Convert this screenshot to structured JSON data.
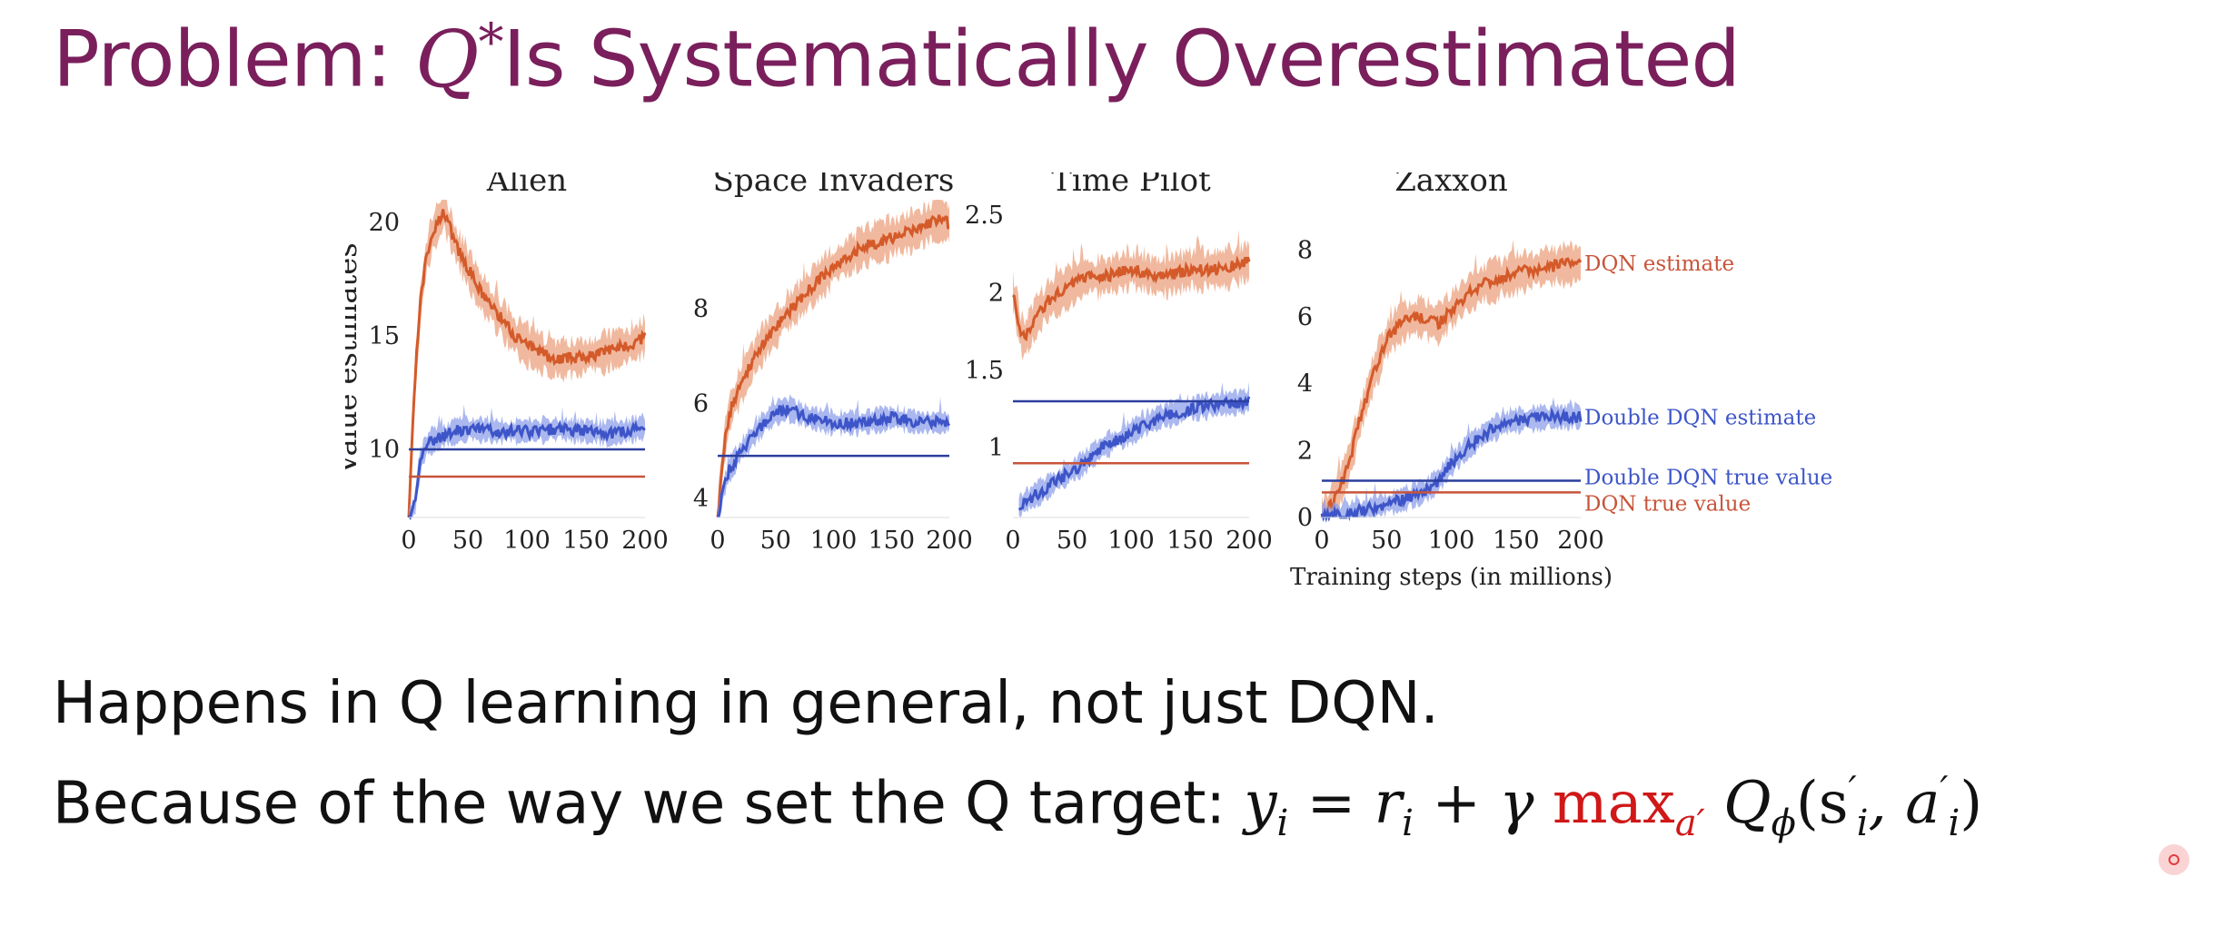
{
  "slide": {
    "title_prefix": "Problem: ",
    "title_q": "Q",
    "title_star": "*",
    "title_suffix": "Is Systematically Overestimated",
    "line1": "Happens in Q learning in general, not just DQN.",
    "line2_text": "Because of the way we set the Q target: ",
    "formula": {
      "y": "y",
      "y_sub": "i",
      "eq": " = ",
      "r": "r",
      "r_sub": "i",
      "plus": " + ",
      "gamma": "γ ",
      "max": "max",
      "max_sub": "a′",
      "q": " Q",
      "q_sub": "ϕ",
      "args_open": "(s",
      "s_sup": "′",
      "s_sub": "i",
      "comma": ", a",
      "a_sup": "′",
      "a_sub": "i",
      "args_close": ")"
    }
  },
  "colors": {
    "title": "#7a1f5c",
    "dqn": "#d45a2a",
    "dqn_band": "#eba27f",
    "double": "#3d55c8",
    "double_band": "#8fa0ea",
    "true_dqn": "#c8543a",
    "true_double": "#2b3f9e",
    "red_max": "#d01818"
  },
  "chart_data": [
    {
      "type": "line",
      "title": "Alien",
      "ylabel": "Value estimates",
      "xlabel": "",
      "xlim": [
        0,
        200
      ],
      "ylim": [
        7,
        21
      ],
      "xticks": [
        0,
        50,
        100,
        150,
        200
      ],
      "yticks": [
        10,
        15,
        20
      ],
      "series": [
        {
          "name": "DQN estimate",
          "kind": "estimate",
          "x": [
            0,
            5,
            10,
            15,
            20,
            25,
            30,
            40,
            50,
            60,
            75,
            90,
            100,
            110,
            120,
            140,
            160,
            180,
            190,
            200
          ],
          "y": [
            7,
            13,
            16.5,
            18.5,
            19.5,
            20,
            20.5,
            19,
            18,
            17,
            16,
            15,
            14.6,
            14.3,
            14,
            14,
            14.2,
            14.5,
            14.6,
            15
          ]
        },
        {
          "name": "Double DQN estimate",
          "kind": "estimate",
          "x": [
            0,
            5,
            10,
            15,
            20,
            30,
            40,
            50,
            75,
            100,
            125,
            150,
            175,
            200
          ],
          "y": [
            7,
            7.5,
            9.5,
            10.2,
            10.4,
            10.6,
            10.8,
            10.9,
            10.8,
            10.8,
            10.9,
            10.8,
            10.7,
            11
          ]
        },
        {
          "name": "Double DQN true value",
          "kind": "true",
          "x": [
            0,
            200
          ],
          "y": [
            10,
            10
          ]
        },
        {
          "name": "DQN true value",
          "kind": "true",
          "x": [
            0,
            200
          ],
          "y": [
            8.8,
            8.8
          ]
        }
      ]
    },
    {
      "type": "line",
      "title": "Space Invaders",
      "xlabel": "",
      "xlim": [
        0,
        200
      ],
      "ylim": [
        3.6,
        10.3
      ],
      "xticks": [
        0,
        50,
        100,
        150,
        200
      ],
      "yticks": [
        4,
        6,
        8
      ],
      "series": [
        {
          "name": "DQN estimate",
          "kind": "estimate",
          "x": [
            0,
            5,
            10,
            15,
            20,
            30,
            40,
            50,
            60,
            75,
            100,
            125,
            150,
            175,
            190,
            200
          ],
          "y": [
            3.6,
            5,
            5.8,
            6.1,
            6.4,
            6.9,
            7.3,
            7.6,
            7.9,
            8.3,
            8.9,
            9.3,
            9.5,
            9.7,
            9.9,
            9.8
          ]
        },
        {
          "name": "Double DQN estimate",
          "kind": "estimate",
          "x": [
            0,
            5,
            10,
            20,
            30,
            40,
            50,
            60,
            70,
            80,
            100,
            125,
            150,
            175,
            200
          ],
          "y": [
            3.6,
            4.2,
            4.6,
            5,
            5.3,
            5.6,
            5.8,
            5.9,
            5.8,
            5.7,
            5.6,
            5.6,
            5.7,
            5.6,
            5.6
          ]
        },
        {
          "name": "Double DQN true value",
          "kind": "true",
          "x": [
            0,
            200
          ],
          "y": [
            4.9,
            4.9
          ]
        }
      ]
    },
    {
      "type": "line",
      "title": "Time Pilot",
      "xlabel": "",
      "xlim": [
        0,
        200
      ],
      "ylim": [
        0.55,
        2.6
      ],
      "xticks": [
        0,
        50,
        100,
        150,
        200
      ],
      "yticks": [
        1.0,
        1.5,
        2.0,
        2.5
      ],
      "series": [
        {
          "name": "DQN estimate",
          "kind": "estimate",
          "x": [
            0,
            3,
            6,
            10,
            15,
            20,
            30,
            40,
            50,
            60,
            75,
            100,
            125,
            150,
            175,
            200
          ],
          "y": [
            2,
            1.9,
            1.75,
            1.7,
            1.78,
            1.85,
            1.95,
            2.0,
            2.05,
            2.1,
            2.1,
            2.15,
            2.1,
            2.15,
            2.15,
            2.2
          ]
        },
        {
          "name": "Double DQN estimate",
          "kind": "estimate",
          "x": [
            5,
            10,
            20,
            30,
            40,
            50,
            60,
            75,
            100,
            125,
            150,
            175,
            200
          ],
          "y": [
            0.62,
            0.65,
            0.7,
            0.75,
            0.8,
            0.85,
            0.9,
            1.0,
            1.1,
            1.2,
            1.25,
            1.28,
            1.3
          ]
        },
        {
          "name": "Double DQN true value",
          "kind": "true",
          "x": [
            0,
            200
          ],
          "y": [
            1.3,
            1.3
          ]
        },
        {
          "name": "DQN true value",
          "kind": "true",
          "x": [
            0,
            200
          ],
          "y": [
            0.9,
            0.9
          ]
        }
      ]
    },
    {
      "type": "line",
      "title": "Zaxxon",
      "xlabel": "Training steps (in millions)",
      "xlim": [
        0,
        200
      ],
      "ylim": [
        0,
        9.5
      ],
      "xticks": [
        0,
        50,
        100,
        150,
        200
      ],
      "yticks": [
        0,
        2,
        4,
        6,
        8
      ],
      "series": [
        {
          "name": "DQN estimate",
          "kind": "estimate",
          "x": [
            0,
            10,
            20,
            30,
            40,
            50,
            60,
            75,
            90,
            100,
            110,
            125,
            150,
            175,
            200
          ],
          "y": [
            0,
            0.5,
            1.5,
            3,
            4.3,
            5.3,
            5.8,
            6,
            5.8,
            6.2,
            6.6,
            7,
            7.3,
            7.5,
            7.6
          ]
        },
        {
          "name": "Double DQN estimate",
          "kind": "estimate",
          "x": [
            0,
            20,
            40,
            60,
            80,
            90,
            100,
            110,
            125,
            140,
            150,
            175,
            200
          ],
          "y": [
            0,
            0.1,
            0.3,
            0.5,
            0.8,
            1.1,
            1.6,
            2.0,
            2.5,
            2.8,
            2.9,
            3.0,
            3.0
          ]
        },
        {
          "name": "Double DQN true value",
          "kind": "true",
          "x": [
            0,
            200
          ],
          "y": [
            1.1,
            1.1
          ]
        },
        {
          "name": "DQN true value",
          "kind": "true",
          "x": [
            0,
            200
          ],
          "y": [
            0.75,
            0.75
          ]
        }
      ],
      "annotations": [
        "DQN estimate",
        "Double DQN estimate",
        "Double DQN true value",
        "DQN true value"
      ]
    }
  ]
}
